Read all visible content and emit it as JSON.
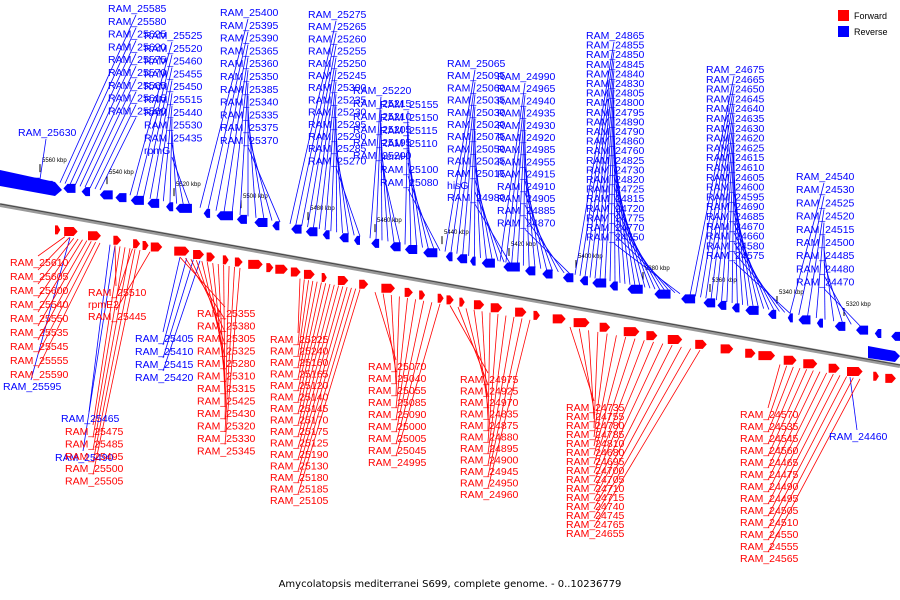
{
  "caption": "Amycolatopsis mediterranei S699, complete genome. - 0..10236779",
  "legend": [
    {
      "label": "Forward",
      "color": "#ff0000"
    },
    {
      "label": "Reverse",
      "color": "#0000ff"
    }
  ],
  "colors": {
    "forward": "#ff0000",
    "reverse": "#0000ff",
    "track": "#666666"
  },
  "ticks": [
    "5560 kbp",
    "5540 kbp",
    "5520 kbp",
    "5500 kbp",
    "5480 kbp",
    "5460 kbp",
    "5440 kbp",
    "5420 kbp",
    "5400 kbp",
    "5380 kbp",
    "5360 kbp",
    "5340 kbp",
    "5320 kbp"
  ],
  "reverse_labels": [
    "RAM_25585",
    "RAM_25580",
    "RAM_25625",
    "RAM_25620",
    "RAM_25575",
    "RAM_25570",
    "RAM_25565",
    "RAM_25615",
    "RAM_25560",
    "RAM_25630",
    "RAM_25525",
    "RAM_25520",
    "RAM_25460",
    "RAM_25455",
    "RAM_25450",
    "RAM_25515",
    "RAM_25440",
    "RAM_25530",
    "RAM_25435",
    "rpmG",
    "RAM_25400",
    "RAM_25395",
    "RAM_25390",
    "RAM_25365",
    "RAM_25360",
    "RAM_25350",
    "RAM_25385",
    "RAM_25340",
    "RAM_25335",
    "RAM_25375",
    "RAM_25370",
    "RAM_25275",
    "RAM_25265",
    "RAM_25260",
    "RAM_25255",
    "RAM_25250",
    "RAM_25245",
    "RAM_25300",
    "RAM_25235",
    "RAM_25230",
    "RAM_25295",
    "RAM_25290",
    "RAM_25285",
    "RAM_25270",
    "RAM_25220",
    "RAM_25215",
    "RAM_25210",
    "RAM_25205",
    "RAM_25195",
    "RAM_25200",
    "RAM_25155",
    "RAM_25150",
    "RAM_25115",
    "RAM_25110",
    "hemH",
    "RAM_25100",
    "RAM_25080",
    "RAM_25065",
    "RAM_25095",
    "RAM_25060",
    "RAM_25035",
    "RAM_25030",
    "RAM_25020",
    "RAM_25075",
    "RAM_25050",
    "RAM_25025",
    "RAM_25015",
    "hisG",
    "RAM_24980",
    "RAM_24990",
    "RAM_24965",
    "RAM_24940",
    "RAM_24935",
    "RAM_24930",
    "RAM_24920",
    "RAM_24985",
    "RAM_24955",
    "RAM_24915",
    "RAM_24910",
    "RAM_24905",
    "RAM_24885",
    "RAM_24870",
    "RAM_24865",
    "RAM_24855",
    "RAM_24850",
    "RAM_24845",
    "RAM_24840",
    "RAM_24830",
    "RAM_24805",
    "RAM_24800",
    "RAM_24795",
    "RAM_24890",
    "RAM_24790",
    "RAM_24860",
    "RAM_24760",
    "RAM_24825",
    "RAM_24730",
    "RAM_24820",
    "RAM_24725",
    "RAM_24815",
    "RAM_24720",
    "RAM_24775",
    "RAM_24770",
    "RAM_24750",
    "RAM_24675",
    "RAM_24665",
    "RAM_24650",
    "RAM_24645",
    "RAM_24640",
    "RAM_24635",
    "RAM_24630",
    "RAM_24620",
    "RAM_24625",
    "RAM_24615",
    "RAM_24610",
    "RAM_24605",
    "RAM_24600",
    "RAM_24595",
    "RAM_24690",
    "RAM_24685",
    "RAM_24670",
    "RAM_24660",
    "RAM_24580",
    "RAM_24575",
    "RAM_24540",
    "RAM_24530",
    "RAM_24525",
    "RAM_24520",
    "RAM_24515",
    "RAM_24500",
    "RAM_24485",
    "RAM_24480",
    "RAM_24470",
    "RAM_25405",
    "RAM_25410",
    "RAM_25415",
    "RAM_25420",
    "RAM_25595",
    "RAM_25465",
    "RAM_25490",
    "RAM_24460"
  ],
  "forward_labels": [
    "RAM_25610",
    "RAM_25605",
    "RAM_25600",
    "RAM_25540",
    "RAM_25550",
    "RAM_25535",
    "RAM_25545",
    "RAM_25555",
    "RAM_25590",
    "RAM_25510",
    "rpmE2",
    "RAM_25445",
    "RAM_25355",
    "RAM_25380",
    "RAM_25305",
    "RAM_25325",
    "RAM_25280",
    "RAM_25310",
    "RAM_25315",
    "RAM_25425",
    "RAM_25430",
    "RAM_25320",
    "RAM_25330",
    "RAM_25345",
    "RAM_25475",
    "RAM_25485",
    "RAM_25495",
    "RAM_25500",
    "RAM_25505",
    "RAM_25225",
    "RAM_25240",
    "RAM_25160",
    "RAM_25165",
    "RAM_25120",
    "RAM_25140",
    "RAM_25145",
    "RAM_25170",
    "RAM_25175",
    "RAM_25125",
    "RAM_25190",
    "RAM_25130",
    "RAM_25180",
    "RAM_25185",
    "RAM_25105",
    "RAM_25070",
    "RAM_25040",
    "RAM_25055",
    "RAM_25085",
    "RAM_25090",
    "RAM_25000",
    "RAM_25005",
    "RAM_25045",
    "RAM_24995",
    "RAM_24975",
    "RAM_24925",
    "RAM_24970",
    "RAM_24835",
    "RAM_24875",
    "RAM_24880",
    "RAM_24895",
    "RAM_24900",
    "RAM_24945",
    "RAM_24950",
    "RAM_24960",
    "RAM_24735",
    "RAM_24755",
    "RAM_24780",
    "RAM_24785",
    "RAM_24810",
    "RAM_24680",
    "RAM_24695",
    "RAM_24700",
    "RAM_24705",
    "RAM_24710",
    "RAM_24715",
    "RAM_24740",
    "RAM_24745",
    "RAM_24765",
    "RAM_24655",
    "RAM_24570",
    "RAM_24535",
    "RAM_24545",
    "RAM_24560",
    "RAM_24465",
    "RAM_24475",
    "RAM_24490",
    "RAM_24495",
    "RAM_24505",
    "RAM_24510",
    "RAM_24550",
    "RAM_24555",
    "RAM_24565"
  ]
}
